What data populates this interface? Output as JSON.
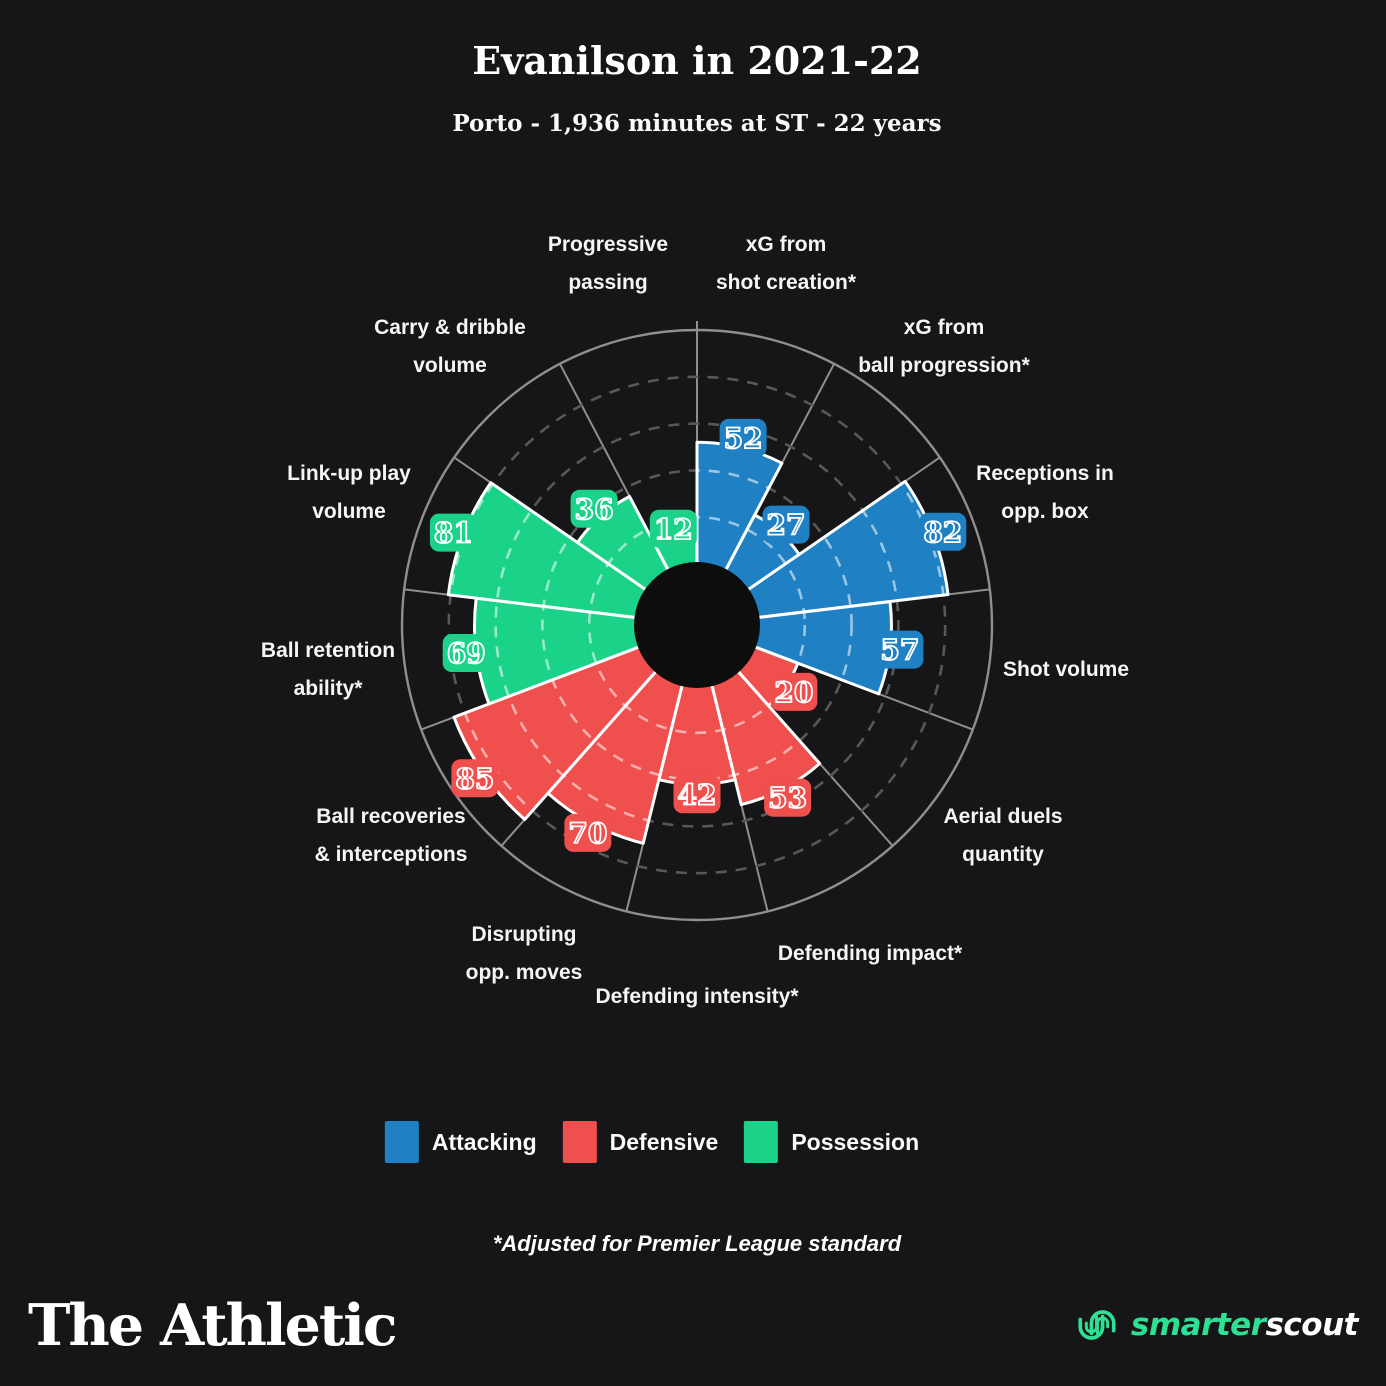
{
  "header": {
    "title": "Evanilson in 2021-22",
    "subtitle": "Porto - 1,936 minutes at ST - 22 years"
  },
  "chart_data": {
    "type": "polar_bar",
    "title": "Evanilson in 2021-22",
    "subtitle": "Porto - 1,936 minutes at ST - 22 years",
    "scale": [
      0,
      100
    ],
    "grid_rings": [
      20,
      40,
      60,
      80
    ],
    "grid": "dashed-circles",
    "legend_position": "bottom",
    "groups": [
      {
        "name": "Attacking",
        "color": "#1f80c3"
      },
      {
        "name": "Defensive",
        "color": "#ef4f4d"
      },
      {
        "name": "Possession",
        "color": "#1bd289"
      }
    ],
    "slices": [
      {
        "label": "xG from shot creation*",
        "label_lines": [
          "xG from",
          "shot creation*"
        ],
        "value": 52,
        "group": "Attacking"
      },
      {
        "label": "xG from ball progression*",
        "label_lines": [
          "xG from",
          "ball progression*"
        ],
        "value": 27,
        "group": "Attacking"
      },
      {
        "label": "Receptions in opp. box",
        "label_lines": [
          "Receptions in",
          "opp. box"
        ],
        "value": 82,
        "group": "Attacking"
      },
      {
        "label": "Shot volume",
        "label_lines": [
          "Shot volume"
        ],
        "value": 57,
        "group": "Attacking"
      },
      {
        "label": "Aerial duels quantity",
        "label_lines": [
          "Aerial duels",
          "quantity"
        ],
        "value": 20,
        "group": "Defensive"
      },
      {
        "label": "Defending impact*",
        "label_lines": [
          "Defending impact*"
        ],
        "value": 53,
        "group": "Defensive"
      },
      {
        "label": "Defending intensity*",
        "label_lines": [
          "Defending intensity*"
        ],
        "value": 42,
        "group": "Defensive"
      },
      {
        "label": "Disrupting opp. moves",
        "label_lines": [
          "Disrupting",
          "opp. moves"
        ],
        "value": 70,
        "group": "Defensive"
      },
      {
        "label": "Ball recoveries & interceptions",
        "label_lines": [
          "Ball recoveries",
          "& interceptions"
        ],
        "value": 85,
        "group": "Defensive"
      },
      {
        "label": "Ball retention ability*",
        "label_lines": [
          "Ball retention",
          "ability*"
        ],
        "value": 69,
        "group": "Possession"
      },
      {
        "label": "Link-up play volume",
        "label_lines": [
          "Link-up play",
          "volume"
        ],
        "value": 81,
        "group": "Possession"
      },
      {
        "label": "Carry & dribble volume",
        "label_lines": [
          "Carry & dribble",
          "volume"
        ],
        "value": 36,
        "group": "Possession"
      },
      {
        "label": "Progressive passing",
        "label_lines": [
          "Progressive",
          "passing"
        ],
        "value": 12,
        "group": "Possession"
      }
    ]
  },
  "legend": {
    "items": [
      {
        "label": "Attacking",
        "color": "#1f80c3"
      },
      {
        "label": "Defensive",
        "color": "#ef4f4d"
      },
      {
        "label": "Possession",
        "color": "#1bd289"
      }
    ]
  },
  "footnote": "*Adjusted for Premier League standard",
  "footer": {
    "left_logo": "The Athletic",
    "right_logo_green": "smarter",
    "right_logo_white": "scout"
  }
}
